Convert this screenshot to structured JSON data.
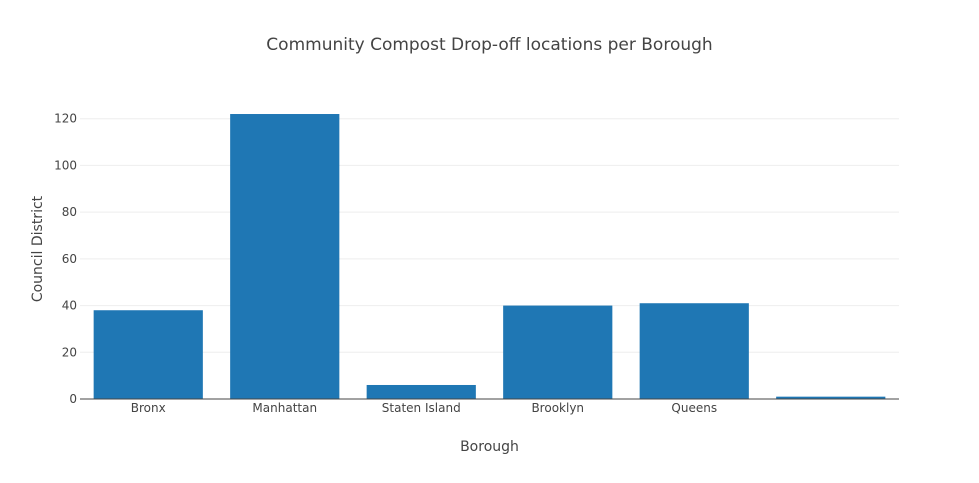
{
  "chart_data": {
    "type": "bar",
    "title": "Community Compost Drop-off locations per Borough",
    "xlabel": "Borough",
    "ylabel": "Council District",
    "categories": [
      "Bronx",
      "Manhattan",
      "Staten Island",
      "Brooklyn",
      "Queens",
      ""
    ],
    "values": [
      38,
      122,
      6,
      40,
      41,
      1
    ],
    "ylim": [
      0,
      128
    ],
    "yticks": [
      0,
      20,
      40,
      60,
      80,
      100,
      120
    ],
    "grid": true,
    "legend": "none",
    "bar_color": "#1f77b4"
  }
}
